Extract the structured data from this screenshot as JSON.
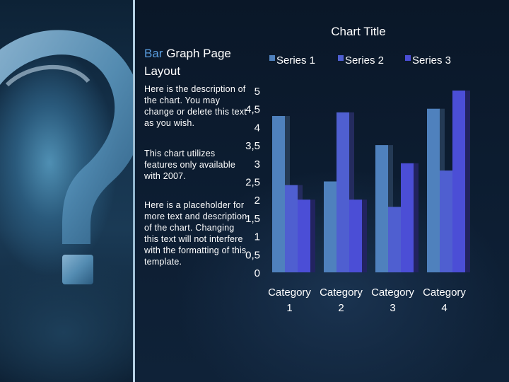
{
  "heading": {
    "accent": "Bar",
    "rest": " Graph Page Layout"
  },
  "descriptions": [
    "Here is the description of the chart.  You may change or delete this text as you wish.",
    "This chart utilizes features only available with  2007.",
    "Here is a placeholder for more text and description of the chart. Changing this text will not interfere with the formatting of this template."
  ],
  "colors": {
    "series1": "#4f81bd",
    "series2": "#4f5fd0",
    "series3": "#4b4ed6",
    "accent_text": "#5a9ee0"
  },
  "chart_data": {
    "type": "bar",
    "title": "Chart Title",
    "categories": [
      "Category 1",
      "Category 2",
      "Category 3",
      "Category 4"
    ],
    "category_lines": [
      [
        "Category",
        "1"
      ],
      [
        "Category",
        "2"
      ],
      [
        "Category",
        "3"
      ],
      [
        "Category",
        "4"
      ]
    ],
    "series": [
      {
        "name": "Series 1",
        "values": [
          4.3,
          2.5,
          3.5,
          4.5
        ]
      },
      {
        "name": "Series 2",
        "values": [
          2.4,
          4.4,
          1.8,
          2.8
        ]
      },
      {
        "name": "Series 3",
        "values": [
          2,
          2,
          3,
          5
        ]
      }
    ],
    "y_ticks": [
      "0",
      "0,5",
      "1",
      "1,5",
      "2",
      "2,5",
      "3",
      "3,5",
      "4",
      "4,5",
      "5"
    ],
    "ylim": [
      0,
      5
    ],
    "legend_position": "top",
    "grid": false
  }
}
